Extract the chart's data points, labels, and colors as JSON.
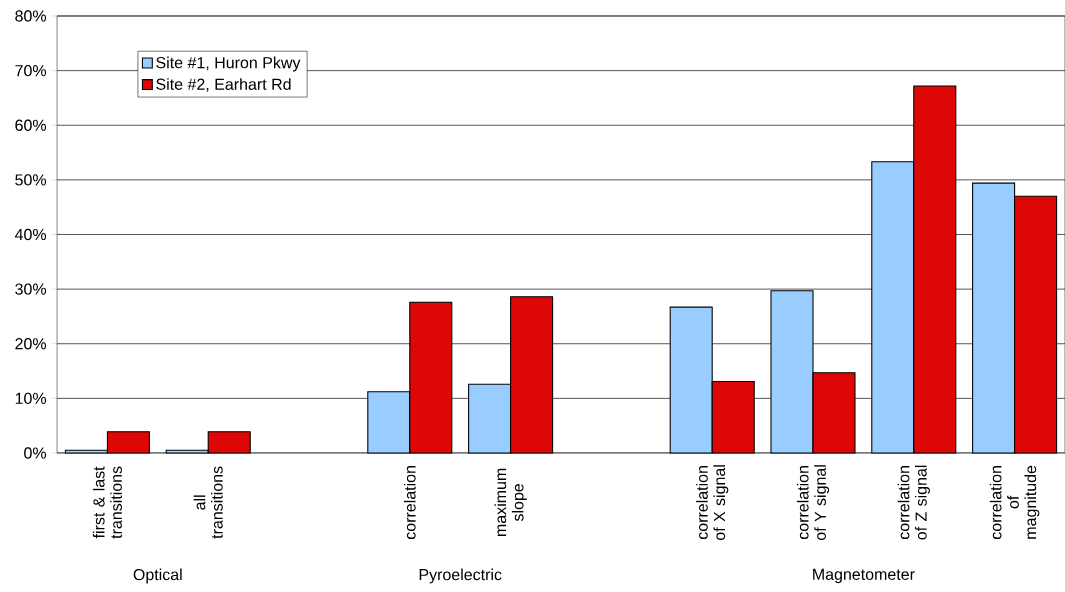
{
  "chart_data": {
    "type": "bar",
    "categories": [
      "first & last transitions",
      "all transitions",
      null,
      "correlation",
      "maximum slope",
      null,
      "correlation of X signal",
      "correlation of Y signal",
      "correlation of Z signal",
      "correlation of magnitude"
    ],
    "series": [
      {
        "name": "Site #1, Huron Pkwy",
        "color": "#99ccff",
        "values": [
          0.5,
          0.5,
          null,
          11.2,
          12.6,
          null,
          26.7,
          29.7,
          53.3,
          49.4
        ]
      },
      {
        "name": "Site #2, Earhart Rd",
        "color": "#dd0806",
        "values": [
          3.9,
          3.9,
          null,
          27.6,
          28.6,
          null,
          13.1,
          14.7,
          67.2,
          47.0
        ]
      }
    ],
    "ylim": [
      0,
      80
    ],
    "yticks": [
      {
        "value": 0,
        "label": "0%"
      },
      {
        "value": 10,
        "label": "10%"
      },
      {
        "value": 20,
        "label": "20%"
      },
      {
        "value": 30,
        "label": "30%"
      },
      {
        "value": 40,
        "label": "40%"
      },
      {
        "value": 50,
        "label": "50%"
      },
      {
        "value": 60,
        "label": "60%"
      },
      {
        "value": 70,
        "label": "70%"
      },
      {
        "value": 80,
        "label": "80%"
      }
    ],
    "grid": "y",
    "legend": "top left",
    "annotations": [
      "Optical",
      "Pyroelectric",
      "Magnetometer"
    ]
  }
}
